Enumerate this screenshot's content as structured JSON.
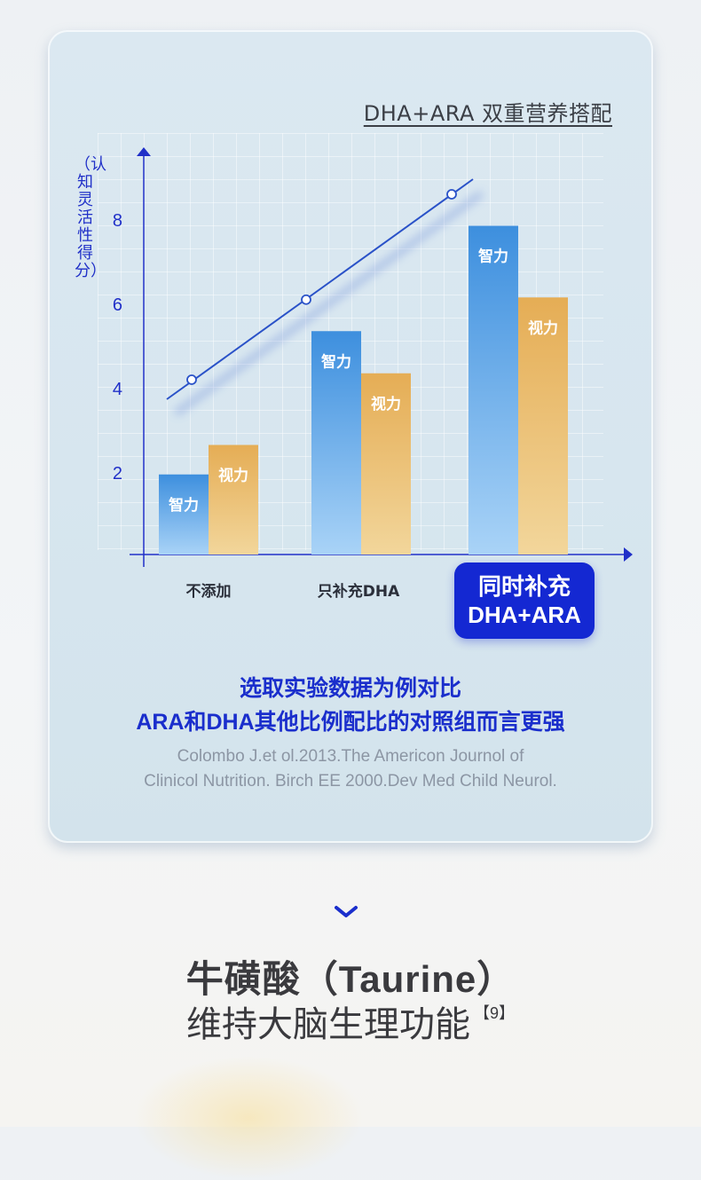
{
  "chart_title": "DHA+ARA 双重营养搭配",
  "chart_data": {
    "type": "bar",
    "title": "DHA+ARA 双重营养搭配",
    "ylabel": "（认知灵活性得分）",
    "xlabel": "",
    "yticks": [
      2,
      4,
      6,
      8
    ],
    "ylim": [
      0,
      10
    ],
    "categories": [
      "不添加",
      "只补充DHA",
      "同时补充 DHA+ARA"
    ],
    "series": [
      {
        "name": "智力",
        "values": [
          1.9,
          5.3,
          7.8
        ]
      },
      {
        "name": "视力",
        "values": [
          2.6,
          4.3,
          6.1
        ]
      }
    ],
    "trend_points": [
      4.4,
      6.3,
      8.8
    ],
    "legend": "bar-labels",
    "colors": {
      "智力": "#4a9de0",
      "视力": "#e8b45c",
      "trend": "#2a52c8",
      "axis": "#2030c8"
    }
  },
  "category_labels": [
    "不添加",
    "只补充DHA"
  ],
  "badge": {
    "line1": "同时补充",
    "line2": "DHA+ARA"
  },
  "highlight": {
    "line1": "选取实验数据为例对比",
    "line2": "ARA和DHA其他比例配比的对照组而言更强"
  },
  "reference": {
    "line1": "Colombo J.et ol.2013.The Americon Journol of",
    "line2": "Clinicol Nutrition. Birch EE 2000.Dev Med Child Neurol."
  },
  "icons": {
    "chevron": "chevron-down-icon"
  },
  "section": {
    "title": "牛磺酸（Taurine）",
    "subtitle": "维持大脑生理功能",
    "citation": "【9】"
  }
}
